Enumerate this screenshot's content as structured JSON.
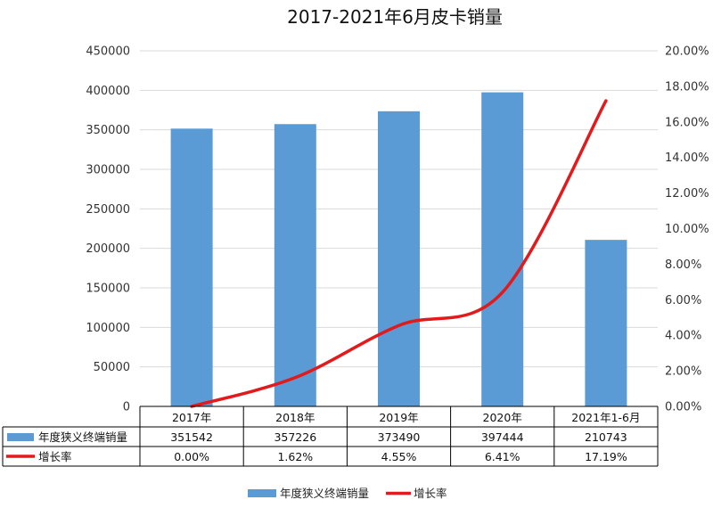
{
  "chart_data": {
    "type": "bar",
    "title": "2017-2021年6月皮卡销量",
    "categories": [
      "2017年",
      "2018年",
      "2019年",
      "2020年",
      "2021年1-6月"
    ],
    "series": [
      {
        "name": "年度狭义终端销量",
        "kind": "bar",
        "axis": "left",
        "color": "#5b9bd5",
        "values": [
          351542,
          357226,
          373490,
          397444,
          210743
        ],
        "labels": [
          "351542",
          "357226",
          "373490",
          "397444",
          "210743"
        ]
      },
      {
        "name": "增长率",
        "kind": "line",
        "axis": "right",
        "color": "#e31a1c",
        "values": [
          0.0,
          1.62,
          4.55,
          6.41,
          17.19
        ],
        "labels": [
          "0.00%",
          "1.62%",
          "4.55%",
          "6.41%",
          "17.19%"
        ]
      }
    ],
    "y_left": {
      "range": [
        0,
        450000
      ],
      "ticks": [
        0,
        50000,
        100000,
        150000,
        200000,
        250000,
        300000,
        350000,
        400000,
        450000
      ],
      "tick_labels": [
        "0",
        "50000",
        "100000",
        "150000",
        "200000",
        "250000",
        "300000",
        "350000",
        "400000",
        "450000"
      ]
    },
    "y_right": {
      "range": [
        0,
        20
      ],
      "ticks": [
        0,
        2,
        4,
        6,
        8,
        10,
        12,
        14,
        16,
        18,
        20
      ],
      "tick_labels": [
        "0.00%",
        "2.00%",
        "4.00%",
        "6.00%",
        "8.00%",
        "10.00%",
        "12.00%",
        "14.00%",
        "16.00%",
        "18.00%",
        "20.00%"
      ]
    },
    "grid": true,
    "data_table": true,
    "legend_position": "bottom"
  }
}
